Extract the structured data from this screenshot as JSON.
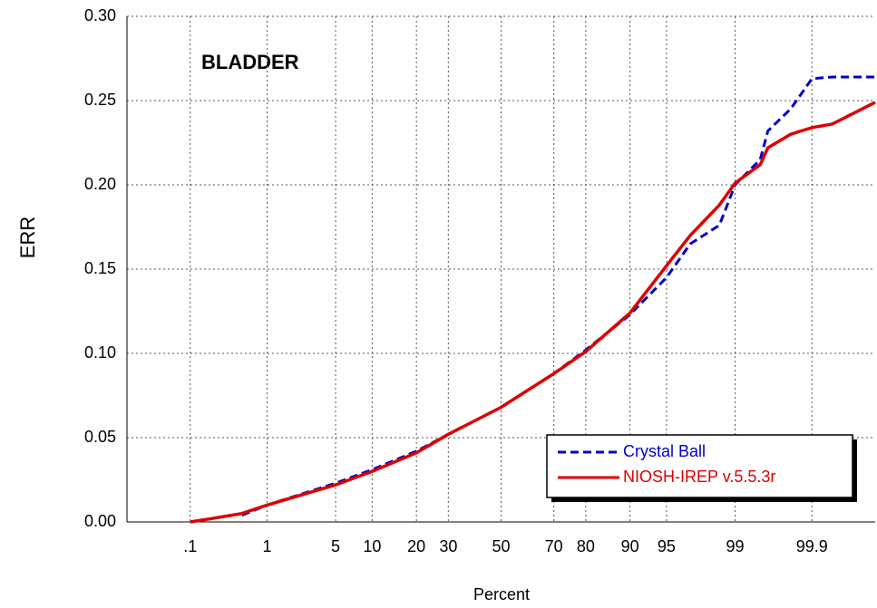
{
  "chart_data": {
    "type": "line",
    "title": "BLADDER",
    "xlabel": "Percent",
    "ylabel": "ERR",
    "xscale": "probability",
    "x": [
      0.1,
      0.2,
      0.5,
      1,
      5,
      10,
      20,
      30,
      50,
      70,
      80,
      90,
      95,
      97,
      98.5,
      99,
      99.5,
      99.6,
      99.8,
      99.9,
      99.95,
      99.99
    ],
    "series": [
      {
        "name": "Crystal Ball",
        "color": "#0000cc",
        "dash": true,
        "values": [
          null,
          null,
          0.004,
          0.01,
          0.023,
          0.031,
          0.042,
          0.052,
          0.068,
          0.088,
          0.102,
          0.123,
          0.145,
          0.165,
          0.176,
          0.2,
          0.215,
          0.232,
          0.245,
          0.263,
          0.264,
          0.264
        ]
      },
      {
        "name": "NIOSH-IREP v.5.5.3r",
        "color": "#dd0000",
        "dash": false,
        "values": [
          0.0,
          0.002,
          0.005,
          0.01,
          0.022,
          0.03,
          0.041,
          0.052,
          0.068,
          0.088,
          0.101,
          0.124,
          0.152,
          0.17,
          0.188,
          0.201,
          0.212,
          0.222,
          0.23,
          0.234,
          0.236,
          0.249
        ]
      }
    ],
    "xlim": [
      0.01,
      99.99
    ],
    "xticks": [
      {
        "value": 0.1,
        "label": ".1"
      },
      1,
      5,
      10,
      20,
      30,
      50,
      70,
      80,
      90,
      95,
      99,
      99.9
    ],
    "ylim": [
      0,
      0.3
    ],
    "yticks": [
      {
        "value": 0,
        "label": "0.00"
      },
      {
        "value": 0.05,
        "label": "0.05"
      },
      {
        "value": 0.1,
        "label": "0.10"
      },
      {
        "value": 0.15,
        "label": "0.15"
      },
      {
        "value": 0.2,
        "label": "0.20"
      },
      {
        "value": 0.25,
        "label": "0.25"
      },
      {
        "value": 0.3,
        "label": "0.30"
      }
    ],
    "grid": true,
    "legend": "lower right"
  }
}
